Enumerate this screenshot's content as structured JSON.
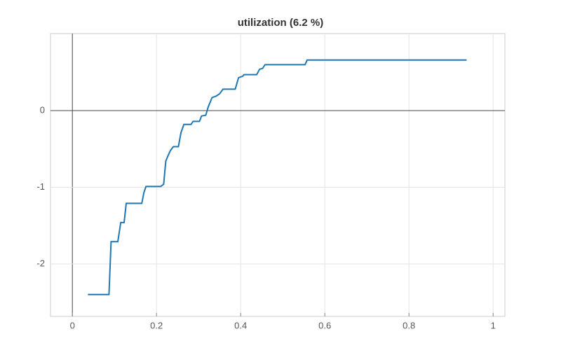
{
  "chart_data": {
    "type": "line",
    "title": "utilization (6.2 %)",
    "x": [
      0.037,
      0.087,
      0.092,
      0.108,
      0.115,
      0.123,
      0.128,
      0.165,
      0.17,
      0.175,
      0.21,
      0.217,
      0.222,
      0.228,
      0.233,
      0.24,
      0.252,
      0.258,
      0.265,
      0.282,
      0.287,
      0.302,
      0.307,
      0.317,
      0.323,
      0.332,
      0.342,
      0.35,
      0.358,
      0.387,
      0.395,
      0.405,
      0.408,
      0.438,
      0.445,
      0.452,
      0.458,
      0.553,
      0.558,
      0.937
    ],
    "series": [
      {
        "color": "#1f77b4",
        "values": [
          -2.4,
          -2.4,
          -1.71,
          -1.71,
          -1.46,
          -1.46,
          -1.21,
          -1.21,
          -1.07,
          -0.99,
          -0.99,
          -0.96,
          -0.66,
          -0.58,
          -0.52,
          -0.47,
          -0.47,
          -0.29,
          -0.18,
          -0.18,
          -0.14,
          -0.14,
          -0.07,
          -0.06,
          0.05,
          0.17,
          0.19,
          0.22,
          0.28,
          0.28,
          0.43,
          0.45,
          0.47,
          0.47,
          0.54,
          0.55,
          0.6,
          0.6,
          0.66,
          0.66
        ]
      }
    ],
    "xlim": [
      -0.052,
      1.028
    ],
    "ylim": [
      -2.685,
      1.005
    ],
    "xticks": [
      0,
      0.2,
      0.4,
      0.6,
      0.8,
      1
    ],
    "yticks": [
      -2,
      -1,
      0
    ],
    "grid": true
  }
}
